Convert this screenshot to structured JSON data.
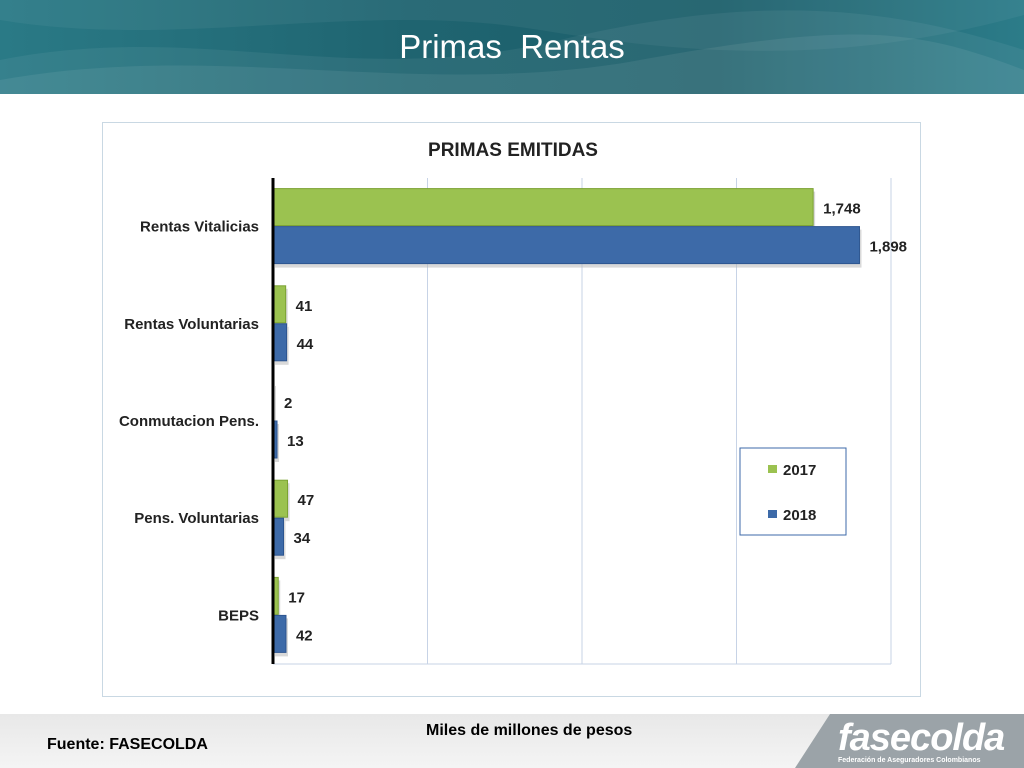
{
  "header": {
    "title": "Primas  Rentas"
  },
  "chart_data": {
    "type": "bar",
    "orientation": "horizontal",
    "title": "PRIMAS EMITIDAS",
    "categories": [
      "Rentas Vitalicias",
      "Rentas Voluntarias",
      "Conmutacion Pens.",
      "Pens. Voluntarias",
      "BEPS"
    ],
    "series": [
      {
        "name": "2017",
        "values": [
          1748,
          41,
          2,
          47,
          17
        ],
        "labels": [
          "1,748",
          "41",
          "2",
          "47",
          "17"
        ],
        "color": "#9bc250"
      },
      {
        "name": "2018",
        "values": [
          1898,
          44,
          13,
          34,
          42
        ],
        "labels": [
          "1,898",
          "44",
          "13",
          "34",
          "42"
        ],
        "color": "#3d6aa8"
      }
    ],
    "xlim": [
      0,
      2000
    ],
    "grid": true,
    "legend": "right"
  },
  "footer": {
    "source": "Fuente: FASECOLDA",
    "units": "Miles de millones de pesos"
  },
  "logo": {
    "wordmark": "fasecolda",
    "tagline": "Federación de Aseguradores Colombianos"
  },
  "colors": {
    "header": "#1f6470",
    "logo_bg": "#9ba3a8"
  }
}
